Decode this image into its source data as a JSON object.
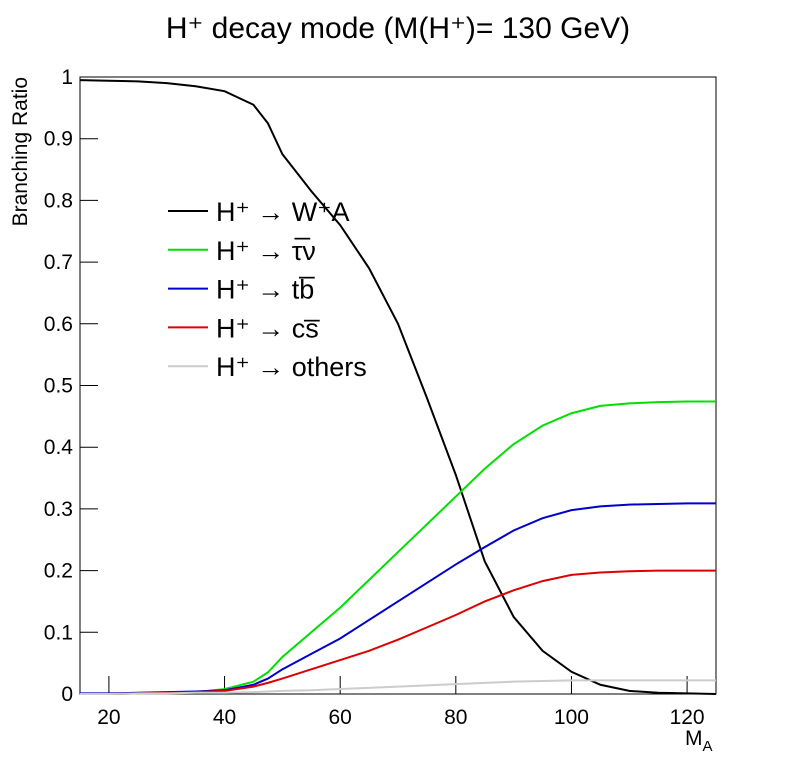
{
  "chart_data": {
    "type": "line",
    "title": "H⁺ decay mode (M(H⁺)= 130 GeV)",
    "y_label": "Branching Ratio",
    "x_label": {
      "main": "M",
      "sub": "A"
    },
    "xlim": [
      15,
      125
    ],
    "xticks": [
      20,
      40,
      60,
      80,
      100,
      120
    ],
    "ylim": [
      0,
      1
    ],
    "yticks": [
      0,
      0.1,
      0.2,
      0.3,
      0.4,
      0.5,
      0.6,
      0.7,
      0.8,
      0.9,
      1
    ],
    "x": [
      15,
      20,
      25,
      30,
      35,
      40,
      45,
      47.5,
      50,
      55,
      60,
      65,
      70,
      75,
      80,
      85,
      90,
      95,
      100,
      105,
      110,
      115,
      120,
      125
    ],
    "series": [
      {
        "name": "H⁺ → W⁺A",
        "color": "#000000",
        "values": [
          0.995,
          0.994,
          0.993,
          0.99,
          0.985,
          0.977,
          0.955,
          0.925,
          0.875,
          0.815,
          0.76,
          0.69,
          0.6,
          0.48,
          0.355,
          0.215,
          0.125,
          0.07,
          0.036,
          0.015,
          0.005,
          0.002,
          0.001,
          0
        ]
      },
      {
        "name": "H⁺ → τ̅ν",
        "color": "#00e000",
        "values": [
          0,
          0,
          0.001,
          0.002,
          0.003,
          0.008,
          0.02,
          0.035,
          0.06,
          0.1,
          0.14,
          0.185,
          0.23,
          0.275,
          0.32,
          0.365,
          0.405,
          0.435,
          0.455,
          0.467,
          0.471,
          0.473,
          0.474,
          0.474
        ]
      },
      {
        "name": "H⁺ → tb̅",
        "color": "#0000cc",
        "values": [
          0.001,
          0.001,
          0.002,
          0.003,
          0.004,
          0.006,
          0.015,
          0.025,
          0.04,
          0.065,
          0.09,
          0.12,
          0.15,
          0.18,
          0.21,
          0.238,
          0.265,
          0.285,
          0.298,
          0.304,
          0.307,
          0.308,
          0.309,
          0.309
        ]
      },
      {
        "name": "H⁺ → cs̅",
        "color": "#dd0000",
        "values": [
          0,
          0,
          0.001,
          0.002,
          0.003,
          0.005,
          0.012,
          0.018,
          0.025,
          0.04,
          0.055,
          0.07,
          0.088,
          0.108,
          0.128,
          0.15,
          0.168,
          0.183,
          0.193,
          0.197,
          0.199,
          0.2,
          0.2,
          0.2
        ]
      },
      {
        "name": "H⁺ → others",
        "color": "#cccccc",
        "values": [
          0,
          0,
          0.001,
          0.001,
          0.002,
          0.002,
          0.003,
          0.004,
          0.005,
          0.006,
          0.008,
          0.01,
          0.012,
          0.014,
          0.016,
          0.018,
          0.02,
          0.021,
          0.022,
          0.022,
          0.022,
          0.022,
          0.022,
          0.022
        ]
      }
    ]
  }
}
